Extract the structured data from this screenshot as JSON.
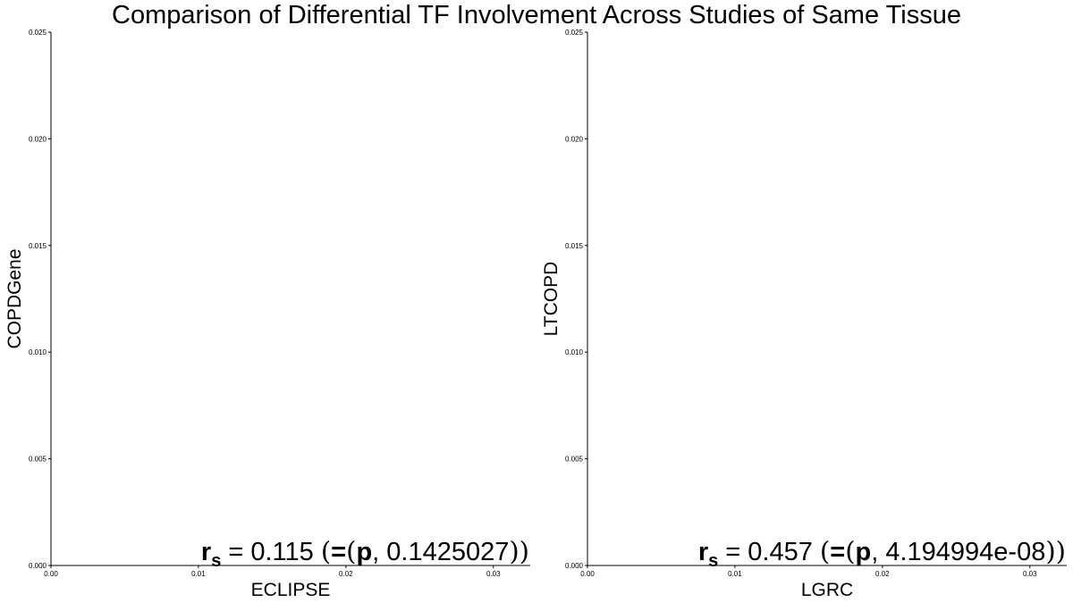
{
  "title": "Comparison of Differential TF Involvement Across Studies of Same Tissue",
  "chart_data": [
    {
      "type": "scatter",
      "title": "",
      "xlabel": "ECLIPSE",
      "ylabel": "COPDGene",
      "xlim": [
        0,
        0.0325
      ],
      "ylim": [
        0,
        0.025
      ],
      "x_ticks": [
        "0.00",
        "0.01",
        "0.02",
        "0.03"
      ],
      "y_ticks": [
        "0.000",
        "0.005",
        "0.010",
        "0.015",
        "0.020",
        "0.025"
      ],
      "grid": false,
      "series": [
        {
          "x": [],
          "y": []
        }
      ],
      "annotation": {
        "r_symbol": "r",
        "r_subscript": "s",
        "equals": "=",
        "r_value": "0.115",
        "p_symbol": "p",
        "p_value": "0.1425027"
      }
    },
    {
      "type": "scatter",
      "title": "",
      "xlabel": "LGRC",
      "ylabel": "LTCOPD",
      "xlim": [
        0,
        0.0325
      ],
      "ylim": [
        0,
        0.025
      ],
      "x_ticks": [
        "0.00",
        "0.01",
        "0.02",
        "0.03"
      ],
      "y_ticks": [
        "0.000",
        "0.005",
        "0.010",
        "0.015",
        "0.020",
        "0.025"
      ],
      "grid": false,
      "series": [
        {
          "x": [],
          "y": []
        }
      ],
      "annotation": {
        "r_symbol": "r",
        "r_subscript": "s",
        "equals": "=",
        "r_value": "0.457",
        "p_symbol": "p",
        "p_value": "4.194994e-08"
      }
    }
  ]
}
